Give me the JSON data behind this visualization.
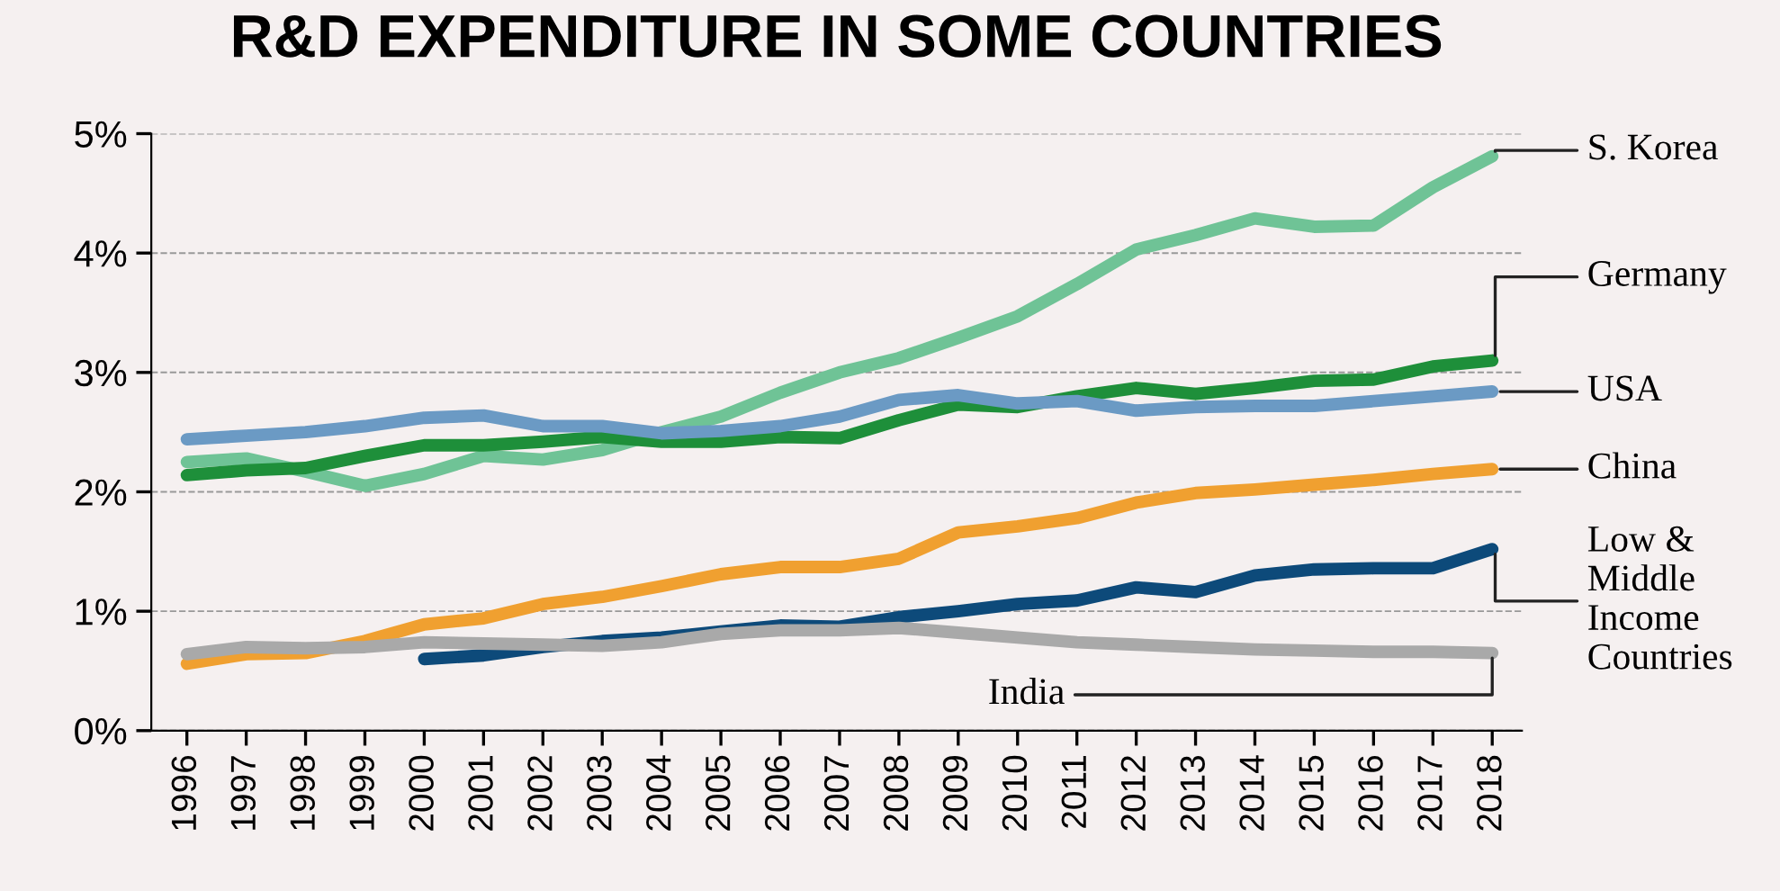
{
  "chart_data": {
    "type": "line",
    "title": "R&D EXPENDITURE IN SOME COUNTRIES",
    "categories": [
      "1996",
      "1997",
      "1998",
      "1999",
      "2000",
      "2001",
      "2002",
      "2003",
      "2004",
      "2005",
      "2006",
      "2007",
      "2008",
      "2009",
      "2010",
      "2011",
      "2012",
      "2013",
      "2014",
      "2015",
      "2016",
      "2017",
      "2018"
    ],
    "series": [
      {
        "name": "S. Korea",
        "color": "#6fc396",
        "values": [
          2.25,
          2.28,
          2.17,
          2.05,
          2.15,
          2.3,
          2.27,
          2.35,
          2.5,
          2.63,
          2.83,
          3.0,
          3.12,
          3.29,
          3.47,
          3.74,
          4.03,
          4.15,
          4.29,
          4.22,
          4.23,
          4.55,
          4.81
        ]
      },
      {
        "name": "Germany",
        "color": "#1e8f3a",
        "values": [
          2.14,
          2.18,
          2.2,
          2.3,
          2.39,
          2.39,
          2.42,
          2.46,
          2.42,
          2.42,
          2.46,
          2.45,
          2.6,
          2.73,
          2.71,
          2.8,
          2.87,
          2.82,
          2.87,
          2.93,
          2.94,
          3.05,
          3.1
        ]
      },
      {
        "name": "USA",
        "color": "#6b9ac4",
        "values": [
          2.44,
          2.47,
          2.5,
          2.55,
          2.62,
          2.64,
          2.55,
          2.55,
          2.49,
          2.51,
          2.55,
          2.63,
          2.77,
          2.81,
          2.74,
          2.76,
          2.68,
          2.71,
          2.72,
          2.72,
          2.76,
          2.8,
          2.84
        ]
      },
      {
        "name": "China",
        "color": "#f0a030",
        "values": [
          0.56,
          0.64,
          0.65,
          0.75,
          0.89,
          0.94,
          1.06,
          1.12,
          1.21,
          1.31,
          1.37,
          1.37,
          1.44,
          1.66,
          1.71,
          1.78,
          1.91,
          1.99,
          2.02,
          2.06,
          2.1,
          2.15,
          2.19
        ]
      },
      {
        "name": "Low & Middle Income Countries",
        "color": "#0d4a7a",
        "values": [
          null,
          null,
          null,
          null,
          0.6,
          0.63,
          0.7,
          0.75,
          0.78,
          0.83,
          0.88,
          0.87,
          0.95,
          1.0,
          1.06,
          1.09,
          1.2,
          1.16,
          1.3,
          1.35,
          1.36,
          1.36,
          1.52
        ]
      },
      {
        "name": "India",
        "color": "#a9a9a9",
        "values": [
          0.64,
          0.7,
          0.69,
          0.7,
          0.74,
          0.73,
          0.72,
          0.71,
          0.74,
          0.81,
          0.84,
          0.84,
          0.86,
          0.82,
          0.78,
          0.74,
          0.72,
          0.7,
          0.68,
          0.67,
          0.66,
          0.66,
          0.65
        ]
      }
    ],
    "ylim": [
      0,
      5
    ],
    "yticks": [
      {
        "value": 0,
        "label": "0%"
      },
      {
        "value": 1,
        "label": "1%"
      },
      {
        "value": 2,
        "label": "2%"
      },
      {
        "value": 3,
        "label": "3%"
      },
      {
        "value": 4,
        "label": "4%"
      },
      {
        "value": 5,
        "label": "5%"
      }
    ],
    "grid": "y",
    "legend": false,
    "marker": "none",
    "line_style": "solid"
  }
}
